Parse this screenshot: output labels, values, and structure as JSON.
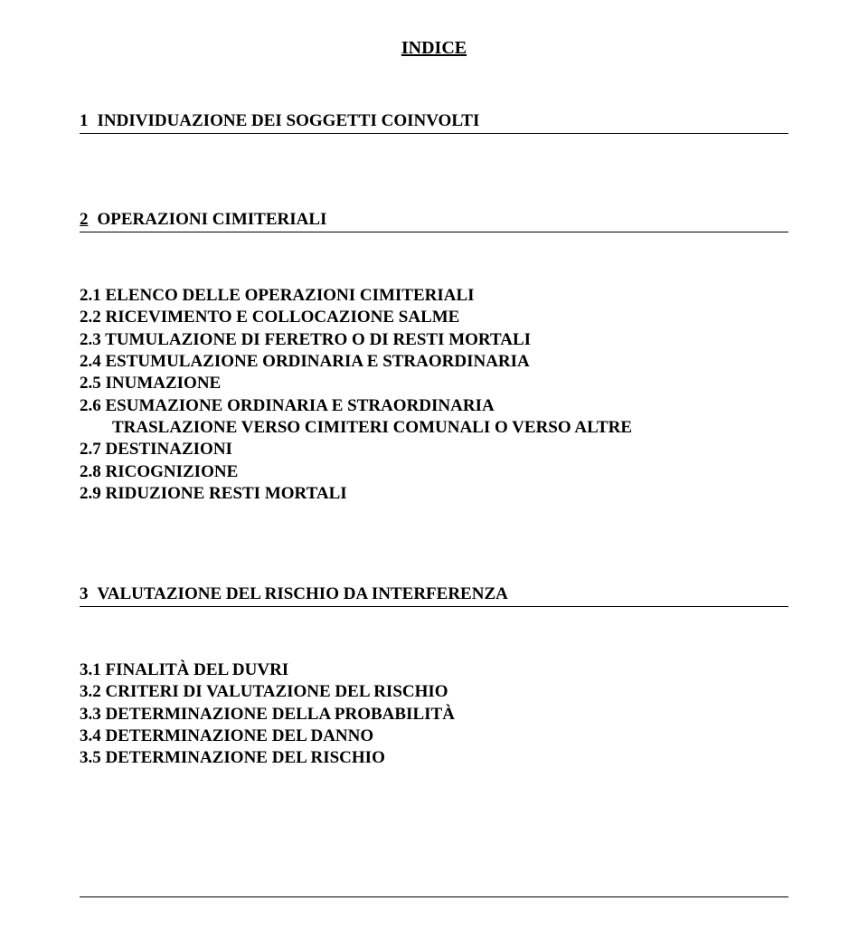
{
  "title": "INDICE",
  "section1": {
    "num": "1",
    "label": "INDIVIDUAZIONE DEI SOGGETTI COINVOLTI"
  },
  "section2": {
    "num": "2",
    "label": "OPERAZIONI CIMITERIALI",
    "items": [
      {
        "text": "2.1 ELENCO DELLE OPERAZIONI CIMITERIALI",
        "indent": false
      },
      {
        "text": "2.2 RICEVIMENTO E COLLOCAZIONE SALME",
        "indent": false
      },
      {
        "text": "2.3 TUMULAZIONE DI FERETRO O DI RESTI MORTALI",
        "indent": false
      },
      {
        "text": "2.4 ESTUMULAZIONE ORDINARIA E STRAORDINARIA",
        "indent": false
      },
      {
        "text": "2.5 INUMAZIONE",
        "indent": false
      },
      {
        "text": "2.6 ESUMAZIONE ORDINARIA E STRAORDINARIA",
        "indent": false
      },
      {
        "text": "TRASLAZIONE VERSO CIMITERI COMUNALI O VERSO ALTRE",
        "indent": true
      },
      {
        "text": "2.7 DESTINAZIONI",
        "indent": false
      },
      {
        "text": "2.8 RICOGNIZIONE",
        "indent": false
      },
      {
        "text": "2.9 RIDUZIONE RESTI MORTALI",
        "indent": false
      }
    ]
  },
  "section3": {
    "num": "3",
    "label": "VALUTAZIONE DEL RISCHIO DA INTERFERENZA",
    "items": [
      {
        "text": "3.1 FINALITÀ DEL DUVRI"
      },
      {
        "text": "3.2 CRITERI DI VALUTAZIONE DEL RISCHIO"
      },
      {
        "text": "3.3 DETERMINAZIONE DELLA PROBABILITÀ"
      },
      {
        "text": "3.4 DETERMINAZIONE DEL DANNO"
      },
      {
        "text": "3.5 DETERMINAZIONE DEL RISCHIO"
      }
    ]
  }
}
